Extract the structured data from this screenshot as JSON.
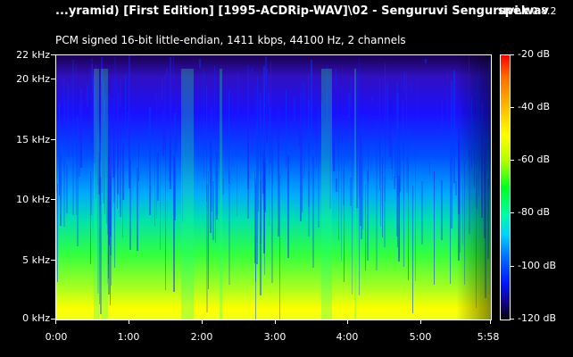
{
  "window": {
    "file_title": "...yramid) [First Edition] [1995-ACDRip-WAV]\\02 - Senguruvi  Senguruvi.wav",
    "app_name": "spek",
    "app_version": "0.8.2",
    "audio_info": "PCM signed 16-bit little-endian, 1411 kbps, 44100 Hz, 2 channels"
  },
  "chart_data": {
    "type": "heatmap",
    "title": "",
    "xlabel": "",
    "ylabel": "",
    "x_tick_labels": [
      "0:00",
      "1:00",
      "2:00",
      "3:00",
      "4:00",
      "5:00",
      "5:58"
    ],
    "x_tick_values_s": [
      0,
      60,
      120,
      180,
      240,
      300,
      358
    ],
    "xlim_s": [
      0,
      358
    ],
    "y_tick_labels": [
      "0 kHz",
      "5 kHz",
      "10 kHz",
      "15 kHz",
      "20 kHz",
      "22 kHz"
    ],
    "y_tick_values_khz": [
      0,
      5,
      10,
      15,
      20,
      22.05
    ],
    "ylim_khz": [
      0,
      22.05
    ],
    "colorbar": {
      "labels": [
        "-20 dB",
        "-40 dB",
        "-60 dB",
        "-80 dB",
        "-100 dB",
        "-120 dB"
      ],
      "values_db": [
        -20,
        -40,
        -60,
        -80,
        -100,
        -120
      ],
      "range_db": [
        -120,
        -20
      ]
    },
    "colors": {
      "high": "#ff0000",
      "mid": "#00ff20",
      "low": "#0018ff",
      "floor": "#000000"
    }
  }
}
